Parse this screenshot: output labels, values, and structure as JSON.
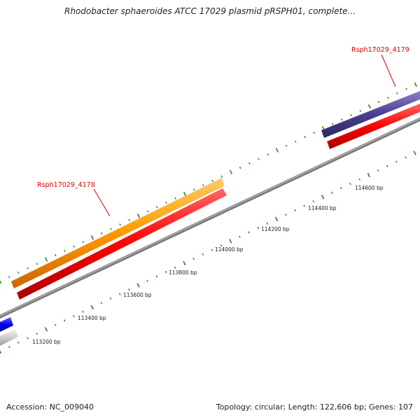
{
  "title": "Rhodobacter sphaeroides ATCC 17029 plasmid pRSPH01, complete...",
  "footer": {
    "accession": "Accession: NC_009040",
    "topology": "Topology: circular; Length: 122,606 bp; Genes: 107"
  },
  "colors": {
    "backbone": "#8a8a8a",
    "tick": "#2e7d2e",
    "label_red": "#dd0000",
    "gene_orange": "#ff9900",
    "gene_red": "#ff0000",
    "gene_purple": "#4a3f8f",
    "gene_blue": "#0000ee",
    "gene_gray": "#cfcfcf"
  },
  "genes": [
    {
      "name": "Rsph17029_4178",
      "color": "orange",
      "labeled": true
    },
    {
      "name": "Rsph17029_4179",
      "color": "purple",
      "labeled": true
    }
  ],
  "bp_labels": [
    "113200 bp",
    "113400 bp",
    "113600 bp",
    "113800 bp",
    "114000 bp",
    "114200 bp",
    "114400 bp",
    "114600 bp"
  ]
}
